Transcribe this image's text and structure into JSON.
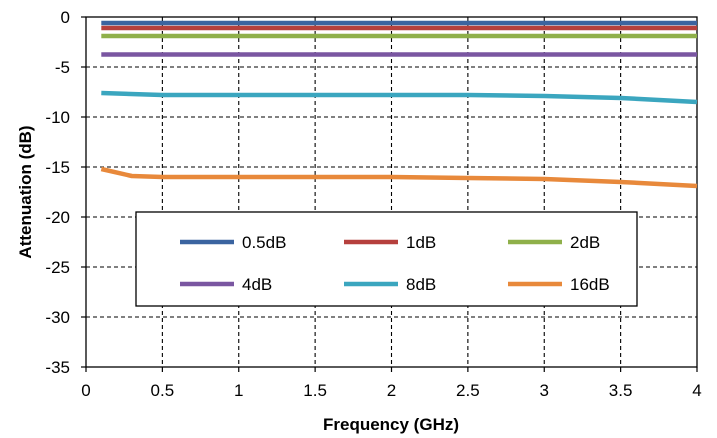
{
  "chart_data": {
    "type": "line",
    "title": "",
    "xlabel": "Frequency (GHz)",
    "ylabel": "Attenuation (dB)",
    "xlim": [
      0,
      4
    ],
    "ylim": [
      -35,
      0
    ],
    "xticks": [
      0,
      0.5,
      1,
      1.5,
      2,
      2.5,
      3,
      3.5,
      4
    ],
    "yticks": [
      0,
      -5,
      -10,
      -15,
      -20,
      -25,
      -30,
      -35
    ],
    "xtick_labels": [
      "0",
      "0.5",
      "1",
      "1.5",
      "2",
      "2.5",
      "3",
      "3.5",
      "4"
    ],
    "ytick_labels": [
      "0",
      "-5",
      "-10",
      "-15",
      "-20",
      "-25",
      "-30",
      "-35"
    ],
    "grid": "dashed",
    "legend_position": "lower-center",
    "series": [
      {
        "name": "0.5dB",
        "color": "#3b64a0",
        "x": [
          0.1,
          4.0
        ],
        "y": [
          -0.6,
          -0.6
        ]
      },
      {
        "name": "1dB",
        "color": "#b6403d",
        "x": [
          0.1,
          1.0,
          2.0,
          3.0,
          4.0
        ],
        "y": [
          -1.1,
          -1.1,
          -1.1,
          -1.1,
          -1.1
        ]
      },
      {
        "name": "2dB",
        "color": "#8fb04a",
        "x": [
          0.1,
          1.0,
          2.0,
          3.0,
          4.0
        ],
        "y": [
          -1.9,
          -1.9,
          -1.9,
          -1.9,
          -1.9
        ]
      },
      {
        "name": "4dB",
        "color": "#7a56a1",
        "x": [
          0.1,
          1.0,
          2.0,
          3.0,
          4.0
        ],
        "y": [
          -3.75,
          -3.75,
          -3.75,
          -3.75,
          -3.75
        ]
      },
      {
        "name": "8dB",
        "color": "#3ba6bf",
        "x": [
          0.1,
          0.5,
          1.0,
          1.5,
          2.0,
          2.5,
          3.0,
          3.5,
          4.0
        ],
        "y": [
          -7.6,
          -7.8,
          -7.8,
          -7.8,
          -7.8,
          -7.8,
          -7.9,
          -8.1,
          -8.5
        ]
      },
      {
        "name": "16dB",
        "color": "#e8893b",
        "x": [
          0.1,
          0.3,
          0.5,
          1.0,
          1.5,
          2.0,
          2.5,
          3.0,
          3.5,
          4.0
        ],
        "y": [
          -15.2,
          -15.9,
          -16.0,
          -16.0,
          -16.0,
          -16.0,
          -16.1,
          -16.2,
          -16.5,
          -16.9
        ]
      }
    ]
  }
}
